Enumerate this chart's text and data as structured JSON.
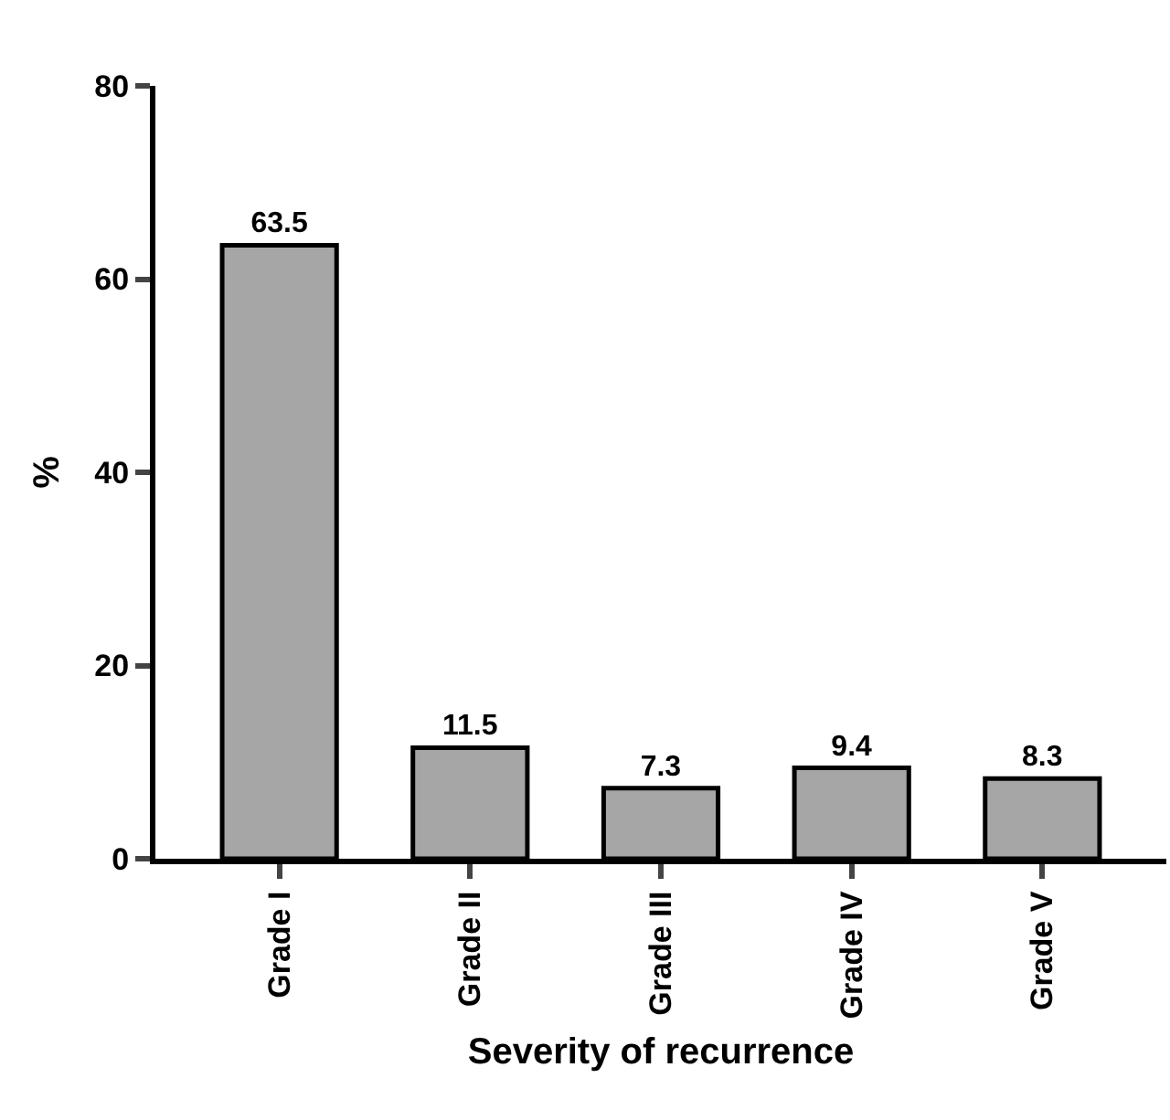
{
  "chart_data": {
    "type": "bar",
    "xlabel": "Severity of recurrence",
    "ylabel": "%",
    "categories": [
      "Grade I",
      "Grade II",
      "Grade III",
      "Grade IV",
      "Grade V"
    ],
    "values": [
      63.5,
      11.5,
      7.3,
      9.4,
      8.3
    ],
    "color": "#a6a6a6",
    "ylim": [
      0,
      80
    ],
    "yticks": [
      0,
      20,
      40,
      60,
      80
    ],
    "grid": false,
    "legend": false,
    "data_labels": true
  }
}
